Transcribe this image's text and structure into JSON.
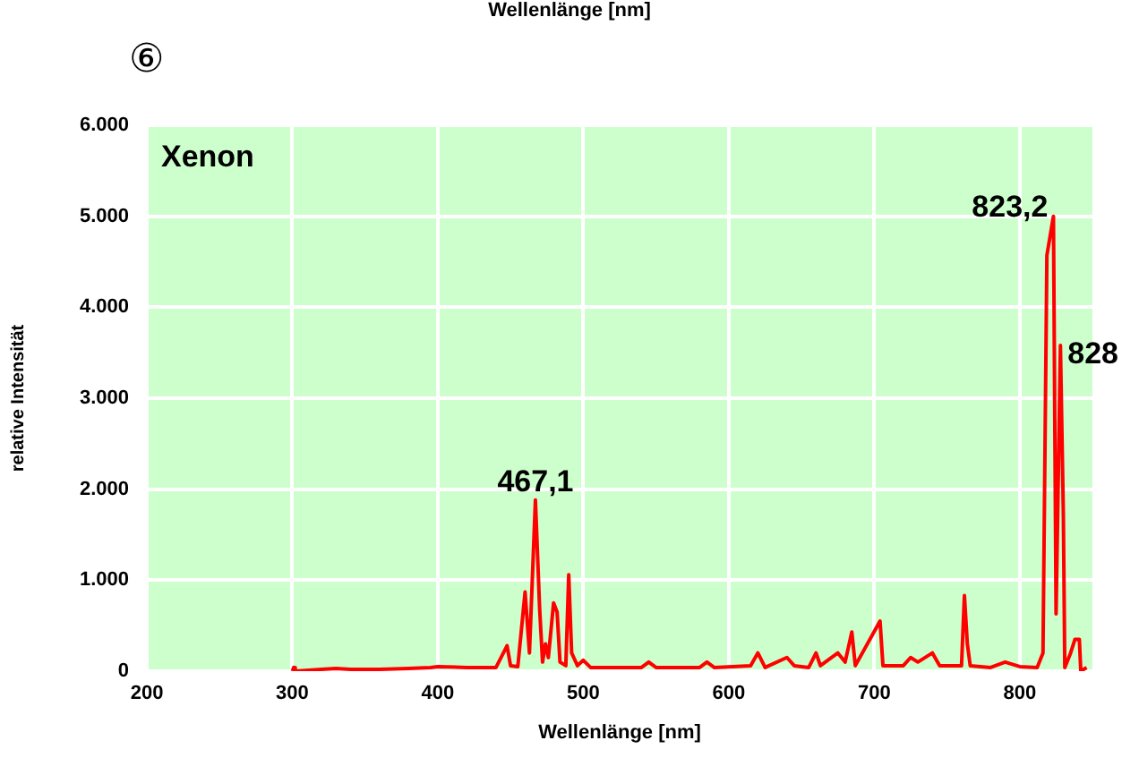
{
  "chart_data": {
    "type": "line",
    "title": "Wellenlänge [nm]",
    "xlabel": "Wellenlänge [nm]",
    "ylabel": "relative Intensität",
    "annotations": [
      "⑥",
      "Xenon",
      {
        "text": "467,1",
        "x": 467.1,
        "y": 1880
      },
      {
        "text": "823,2",
        "x": 823.2,
        "y": 5000
      },
      {
        "text": "828",
        "x": 828,
        "y": 3580
      }
    ],
    "xlim": [
      200,
      850
    ],
    "xticks": [
      200,
      300,
      400,
      500,
      600,
      700,
      800
    ],
    "ylim": [
      0,
      6000
    ],
    "yticks": [
      0,
      {
        "value": 1000,
        "label": "1.000"
      },
      {
        "value": 2000,
        "label": "2.000"
      },
      {
        "value": 3000,
        "label": "3.000"
      },
      {
        "value": 4000,
        "label": "4.000"
      },
      {
        "value": 5000,
        "label": "5.000"
      },
      {
        "value": 6000,
        "label": "6.000"
      }
    ],
    "grid": true,
    "legend": false,
    "marker": "none",
    "line_style": "solid",
    "series": [
      {
        "color": "#ff0000",
        "x": [
          300,
          301,
          302,
          320,
          330,
          340,
          360,
          380,
          395,
          400,
          420,
          440,
          447.6,
          450,
          455,
          460,
          463,
          467.1,
          470,
          472,
          474,
          476,
          479.6,
          482,
          484,
          488,
          490,
          492,
          496,
          500,
          505,
          540,
          545,
          550,
          580,
          585,
          590,
          615,
          620,
          625,
          640,
          645,
          655,
          660,
          663,
          675,
          680,
          684.6,
          687,
          704,
          706,
          720,
          725,
          730,
          740,
          745,
          760,
          762,
          764,
          766,
          780,
          790,
          800,
          812,
          816,
          818.7,
          823.2,
          825,
          828,
          830,
          831,
          835,
          838,
          841,
          842,
          846
        ],
        "values": [
          0,
          40,
          0,
          20,
          30,
          20,
          20,
          30,
          40,
          50,
          40,
          40,
          280,
          60,
          50,
          870,
          200,
          1880,
          690,
          100,
          300,
          150,
          750,
          650,
          100,
          60,
          1060,
          200,
          60,
          120,
          40,
          40,
          100,
          40,
          40,
          100,
          40,
          60,
          200,
          40,
          150,
          60,
          40,
          200,
          60,
          200,
          100,
          430,
          60,
          550,
          60,
          60,
          150,
          100,
          200,
          60,
          60,
          830,
          300,
          60,
          40,
          100,
          50,
          40,
          200,
          4570,
          5000,
          630,
          3580,
          1730,
          40,
          200,
          350,
          350,
          0,
          40
        ]
      }
    ]
  }
}
